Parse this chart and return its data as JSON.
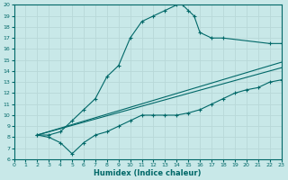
{
  "title": "",
  "xlabel": "Humidex (Indice chaleur)",
  "ylabel": "",
  "bg_color": "#c8e8e8",
  "grid_color": "#b8d8d8",
  "line_color": "#006868",
  "xlim": [
    0,
    23
  ],
  "ylim": [
    6,
    20
  ],
  "xticks": [
    0,
    1,
    2,
    3,
    4,
    5,
    6,
    7,
    8,
    9,
    10,
    11,
    12,
    13,
    14,
    15,
    16,
    17,
    18,
    19,
    20,
    21,
    22,
    23
  ],
  "yticks": [
    6,
    7,
    8,
    9,
    10,
    11,
    12,
    13,
    14,
    15,
    16,
    17,
    18,
    19,
    20
  ],
  "series": [
    {
      "x": [
        2,
        3,
        4,
        5,
        6,
        7,
        8,
        9,
        10,
        11,
        12,
        13,
        14,
        14.5,
        15,
        15.5,
        16,
        17,
        18,
        22,
        23
      ],
      "y": [
        8.2,
        8.2,
        8.5,
        9.5,
        10.5,
        11.5,
        13.5,
        14.5,
        17,
        18.5,
        19,
        19.5,
        20,
        20,
        19.5,
        19,
        17.5,
        17,
        17,
        16.5,
        16.5
      ],
      "marker": true
    },
    {
      "x": [
        2,
        3,
        4,
        5,
        6,
        7,
        8,
        9,
        10,
        11,
        12,
        13,
        14,
        15,
        16,
        17,
        18,
        19,
        20,
        21,
        22,
        23
      ],
      "y": [
        8.2,
        8.0,
        7.5,
        6.5,
        7.5,
        8.2,
        8.5,
        9.0,
        9.5,
        10.0,
        10.0,
        10.0,
        10.0,
        10.2,
        10.5,
        11.0,
        11.5,
        12.0,
        12.3,
        12.5,
        13.0,
        13.2
      ],
      "marker": true
    },
    {
      "x": [
        2,
        23
      ],
      "y": [
        8.2,
        14.8
      ],
      "marker": false
    },
    {
      "x": [
        2,
        23
      ],
      "y": [
        8.2,
        14.3
      ],
      "marker": false
    }
  ]
}
